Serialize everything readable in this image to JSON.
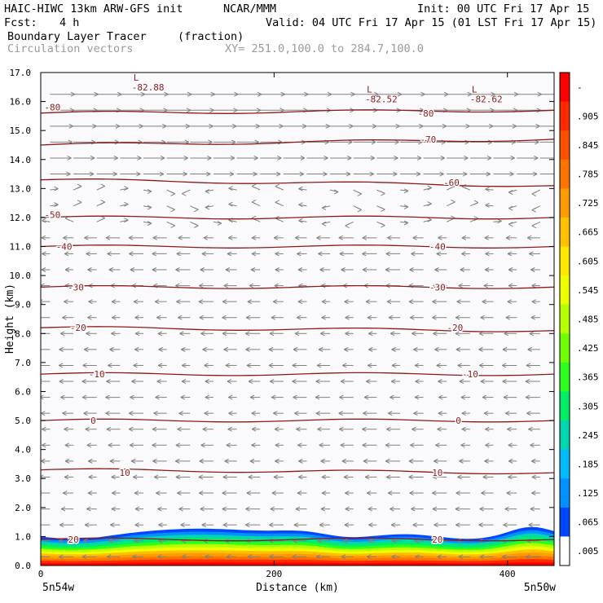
{
  "header": {
    "model": "HAIC-HIWC 13km ARW-GFS init",
    "org": "NCAR/MMM",
    "init": "Init: 00 UTC Fri 17 Apr 15",
    "fcst_label": "Fcst:",
    "fcst_value": "4 h",
    "valid": "Valid: 04 UTC Fri 17 Apr 15 (01 LST Fri 17 Apr 15)",
    "field1": "Boundary Layer Tracer",
    "field1_units": "(fraction)",
    "field2": "Circulation vectors",
    "xy_range": "XY= 251.0,100.0 to 284.7,100.0"
  },
  "colors": {
    "contour": "#8b1a1a",
    "vector": "#808080",
    "low_label": "#8b1a1a"
  },
  "chart_data": {
    "type": "heatmap",
    "title": "Boundary Layer Tracer",
    "units": "(fraction)",
    "xlabel": "Distance (km)",
    "ylabel": "Height (km)",
    "xlim": [
      0,
      440
    ],
    "ylim": [
      0.0,
      17.0
    ],
    "x_ticks": [
      "0",
      "200",
      "400"
    ],
    "x_tick_values": [
      0,
      200,
      400
    ],
    "y_ticks": [
      "0.0",
      "1.0",
      "2.0",
      "3.0",
      "4.0",
      "5.0",
      "6.0",
      "7.0",
      "8.0",
      "9.0",
      "10.0",
      "11.0",
      "12.0",
      "13.0",
      "14.0",
      "15.0",
      "16.0",
      "17.0"
    ],
    "x_endpoint_left": "5n54w",
    "x_endpoint_right": "5n50w",
    "colorbar": {
      "labels": [
        "-",
        ".905",
        ".845",
        ".785",
        ".725",
        ".665",
        ".605",
        ".545",
        ".485",
        ".425",
        ".365",
        ".305",
        ".245",
        ".185",
        ".125",
        ".065",
        ".005"
      ],
      "colors": [
        "#ff0000",
        "#ff2a00",
        "#ff5000",
        "#ff7400",
        "#ff9a00",
        "#ffc000",
        "#ffe600",
        "#eeff00",
        "#b4ff00",
        "#70ff00",
        "#2cff20",
        "#00ee66",
        "#00d6b0",
        "#00bcff",
        "#0090ff",
        "#0048ff",
        "#ffffff"
      ]
    },
    "temperature_contours": [
      {
        "value": "-80",
        "left": 15.6,
        "right": 15.7,
        "labels": [
          {
            "x": 10,
            "y": 15.8
          },
          {
            "x": 330,
            "y": 15.6
          }
        ]
      },
      {
        "value": "-70",
        "left": 14.5,
        "right": 14.7,
        "labels": [
          {
            "x": 332,
            "y": 14.7
          }
        ]
      },
      {
        "value": "-60",
        "left": 13.3,
        "right": 13.1,
        "labels": [
          {
            "x": 352,
            "y": 13.2
          }
        ]
      },
      {
        "value": "-50",
        "left": 12.0,
        "right": 12.0,
        "labels": [
          {
            "x": 10,
            "y": 12.1
          }
        ]
      },
      {
        "value": "-40",
        "left": 11.0,
        "right": 11.0,
        "labels": [
          {
            "x": 20,
            "y": 11.0
          },
          {
            "x": 340,
            "y": 11.0
          }
        ]
      },
      {
        "value": "-30",
        "left": 9.6,
        "right": 9.6,
        "labels": [
          {
            "x": 30,
            "y": 9.6
          },
          {
            "x": 340,
            "y": 9.6
          }
        ]
      },
      {
        "value": "-20",
        "left": 8.2,
        "right": 8.1,
        "labels": [
          {
            "x": 32,
            "y": 8.2
          },
          {
            "x": 355,
            "y": 8.2
          }
        ]
      },
      {
        "value": "-10",
        "left": 6.6,
        "right": 6.6,
        "labels": [
          {
            "x": 48,
            "y": 6.6
          },
          {
            "x": 368,
            "y": 6.6
          }
        ]
      },
      {
        "value": "0",
        "left": 5.0,
        "right": 5.0,
        "labels": [
          {
            "x": 45,
            "y": 5.0
          },
          {
            "x": 358,
            "y": 5.0
          }
        ]
      },
      {
        "value": "10",
        "left": 3.3,
        "right": 3.2,
        "labels": [
          {
            "x": 72,
            "y": 3.2
          },
          {
            "x": 340,
            "y": 3.2
          }
        ]
      },
      {
        "value": "20",
        "left": 0.9,
        "right": 0.9,
        "labels": [
          {
            "x": 28,
            "y": 0.9
          },
          {
            "x": 340,
            "y": 0.9
          }
        ]
      }
    ],
    "lows": [
      {
        "label": "L",
        "value": "-82.88",
        "x": 85,
        "y": 16.6
      },
      {
        "label": "L",
        "value": "-82.52",
        "x": 285,
        "y": 16.2
      },
      {
        "label": "L",
        "value": "-82.62",
        "x": 375,
        "y": 16.2
      }
    ],
    "tracer_layer_top_km": 1.0
  }
}
